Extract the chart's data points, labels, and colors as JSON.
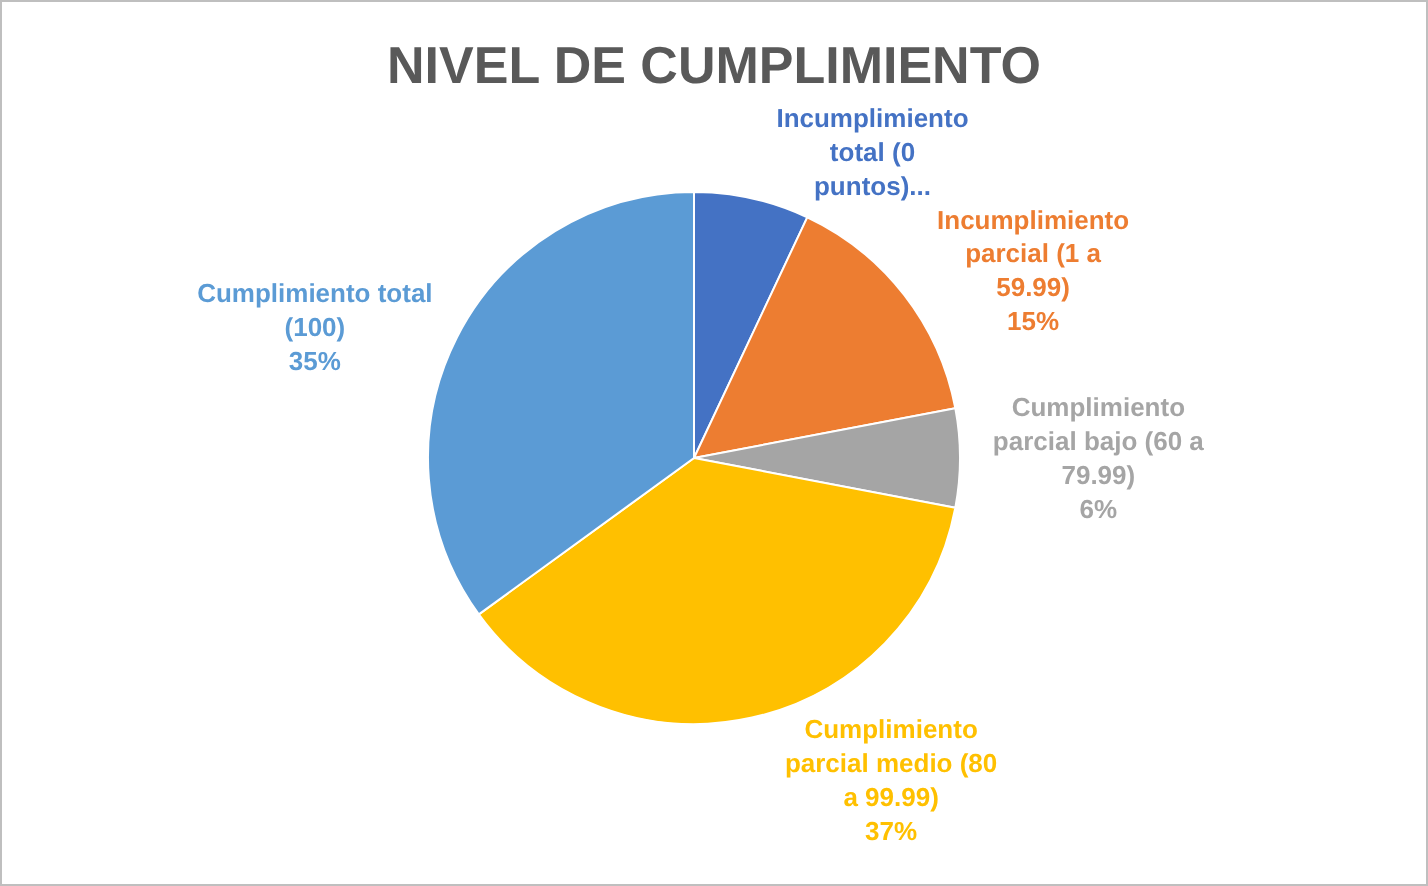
{
  "chart_data": {
    "type": "pie",
    "title": "NIVEL DE CUMPLIMIENTO",
    "categories": [
      "Incumplimiento total (0 puntos)...",
      "Incumplimiento parcial (1 a 59.99)",
      "Cumplimiento parcial bajo (60 a 79.99)",
      "Cumplimiento parcial medio (80 a 99.99)",
      "Cumplimiento total (100)"
    ],
    "values": [
      7,
      15,
      6,
      37,
      35
    ],
    "value_labels": [
      null,
      "15%",
      "6%",
      "37%",
      "35%"
    ],
    "colors": [
      "#4472c4",
      "#ed7d31",
      "#a5a5a5",
      "#ffc000",
      "#5b9bd5"
    ],
    "legend": false
  }
}
